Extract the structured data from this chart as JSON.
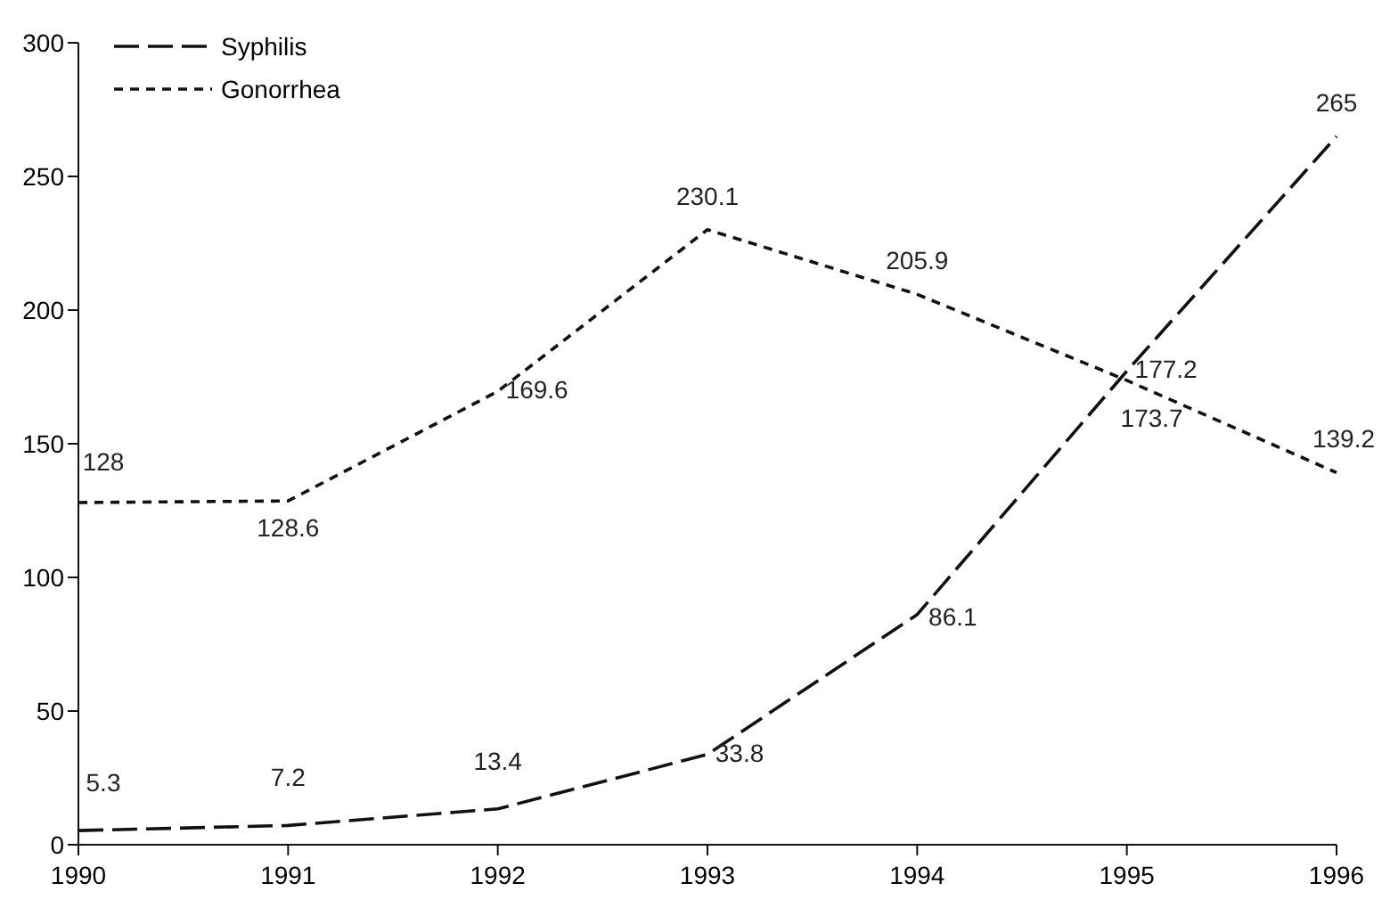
{
  "chart_data": {
    "type": "line",
    "x": [
      1990,
      1991,
      1992,
      1993,
      1994,
      1995,
      1996
    ],
    "xlim": [
      1990,
      1996
    ],
    "xticks": [
      1990,
      1991,
      1992,
      1993,
      1994,
      1995,
      1996
    ],
    "ylim": [
      0,
      300
    ],
    "yticks": [
      0,
      50,
      100,
      150,
      200,
      250,
      300
    ],
    "grid": false,
    "legend": "top left",
    "marker": "none",
    "data_labels": true,
    "series": [
      {
        "name": "Syphilis",
        "color": "#111111",
        "line_style": "dashed",
        "values": [
          5.3,
          7.2,
          13.4,
          33.8,
          86.1,
          177.2,
          265
        ]
      },
      {
        "name": "Gonorrhea",
        "color": "#111111",
        "line_style": "dotted",
        "values": [
          128,
          128.6,
          169.6,
          230.1,
          205.9,
          173.7,
          139.2
        ]
      }
    ]
  }
}
